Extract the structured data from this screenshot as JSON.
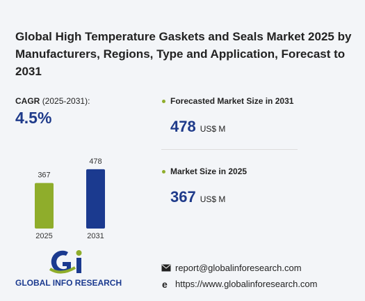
{
  "title": "Global High Temperature Gaskets and Seals Market 2025 by Manufacturers, Regions, Type and Application, Forecast to 2031",
  "cagr": {
    "label": "CAGR",
    "period": "(2025-2031):",
    "value": "4.5%"
  },
  "chart_data": {
    "type": "bar",
    "categories": [
      "2025",
      "2031"
    ],
    "values": [
      367,
      478
    ],
    "colors": [
      "#8fad2b",
      "#1b3a8f"
    ]
  },
  "stats": [
    {
      "label": "Forecasted Market Size in 2031",
      "value": 478,
      "unit": "US$ M"
    },
    {
      "label": "Market Size in 2025",
      "value": 367,
      "unit": "US$ M"
    }
  ],
  "logo": {
    "text": "GLOBAL INFO RESEARCH"
  },
  "contact": {
    "email": "report@globalinforesearch.com",
    "website": "https://www.globalinforesearch.com"
  }
}
